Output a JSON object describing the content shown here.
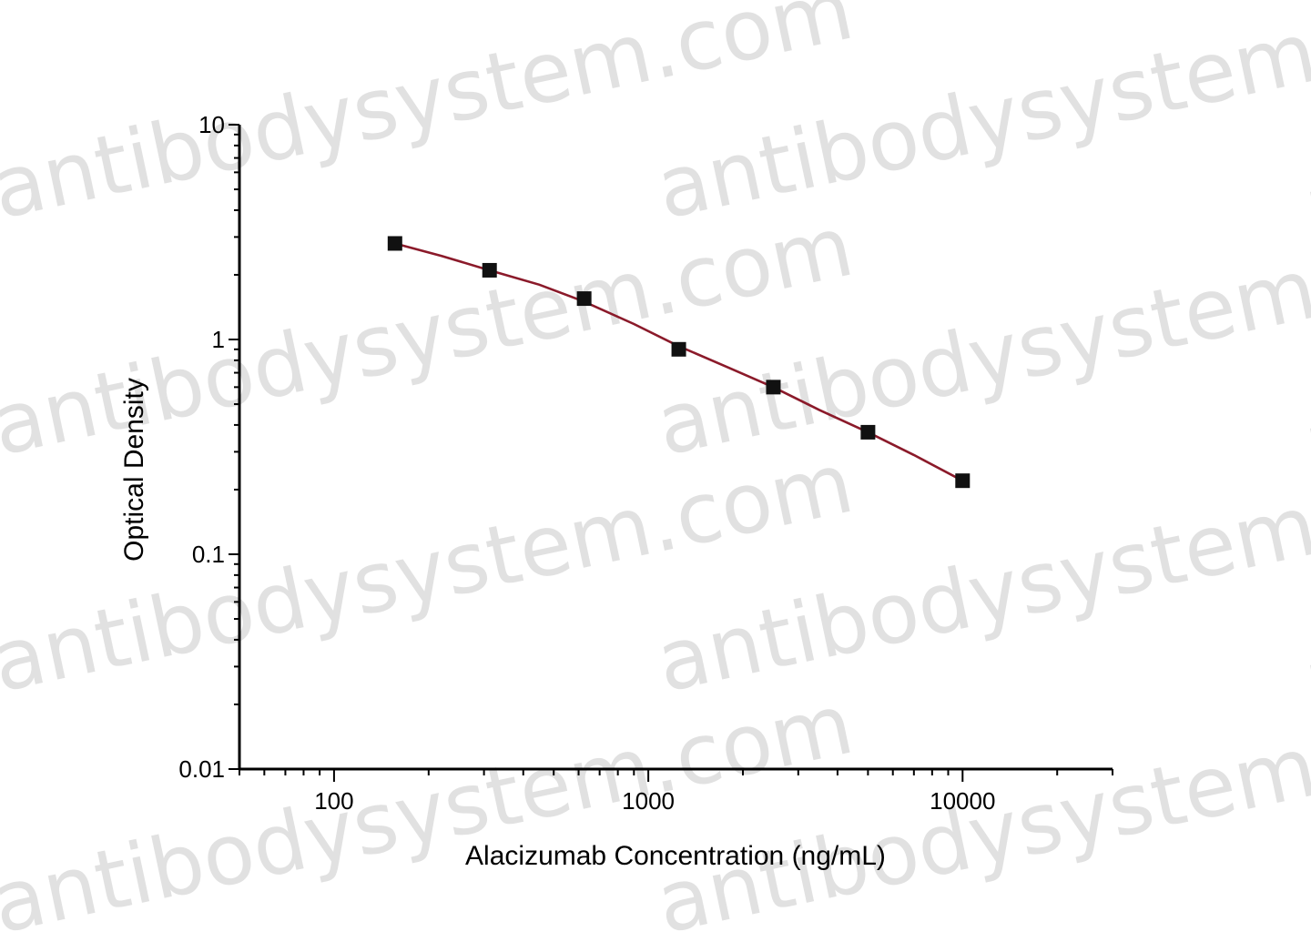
{
  "watermark": {
    "text": "antibodysystem.com",
    "color": "#d9d9d9"
  },
  "chart_data": {
    "type": "scatter",
    "title": "",
    "xlabel": "Alacizumab Concentration (ng/mL)",
    "ylabel": "Optical Density",
    "x_scale": "log",
    "y_scale": "log",
    "xlim": [
      50,
      30000
    ],
    "ylim": [
      0.01,
      10
    ],
    "x_ticks": [
      100,
      1000,
      10000
    ],
    "x_tick_labels": [
      "100",
      "1000",
      "10000"
    ],
    "y_ticks": [
      0.01,
      0.1,
      1,
      10
    ],
    "y_tick_labels": [
      "0.01",
      "0.1",
      "1",
      "10"
    ],
    "grid": false,
    "legend": "none",
    "series": [
      {
        "marker": "square",
        "color": "#111111",
        "x": [
          156.25,
          312.5,
          625,
          1250,
          2500,
          5000,
          10000
        ],
        "y": [
          2.8,
          2.1,
          1.55,
          0.9,
          0.6,
          0.37,
          0.22
        ]
      }
    ],
    "fit_curve": {
      "color": "#8b1a2a",
      "x": [
        156.25,
        220,
        312.5,
        450,
        625,
        900,
        1250,
        1800,
        2500,
        3500,
        5000,
        7000,
        10000
      ],
      "y": [
        2.8,
        2.45,
        2.1,
        1.8,
        1.5,
        1.18,
        0.93,
        0.74,
        0.6,
        0.47,
        0.37,
        0.29,
        0.22
      ]
    }
  }
}
